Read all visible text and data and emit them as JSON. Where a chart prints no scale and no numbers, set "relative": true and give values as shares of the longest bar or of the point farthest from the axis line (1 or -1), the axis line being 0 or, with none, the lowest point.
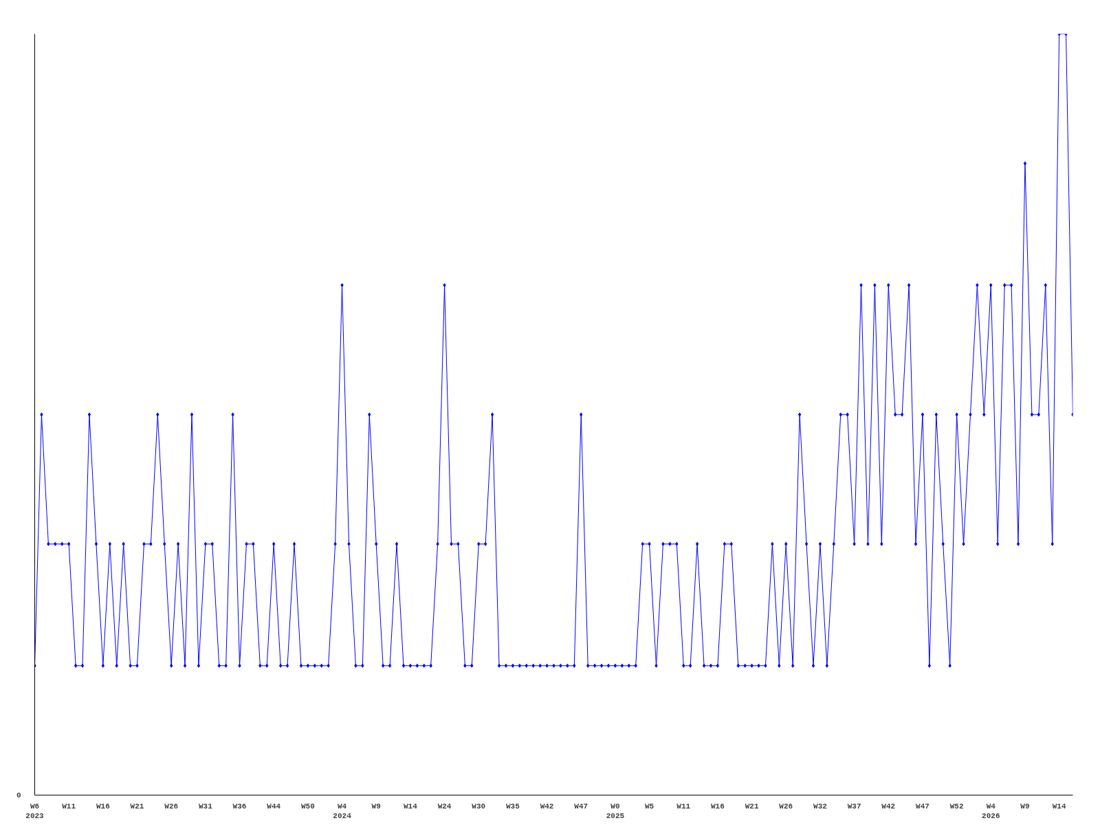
{
  "chart_data": {
    "type": "line",
    "relative": true,
    "color": "#0000ff",
    "marker": "diamond",
    "grid": false,
    "annotations": [
      "0"
    ],
    "categories": [
      "W6\n2023",
      null,
      null,
      null,
      null,
      "W11",
      null,
      null,
      null,
      null,
      "W16",
      null,
      null,
      null,
      null,
      "W21",
      null,
      null,
      null,
      null,
      "W26",
      null,
      null,
      null,
      null,
      "W31",
      null,
      null,
      null,
      null,
      "W36",
      null,
      null,
      null,
      null,
      "W44",
      null,
      null,
      null,
      null,
      "W50",
      null,
      null,
      null,
      null,
      "W4\n2024",
      null,
      null,
      null,
      null,
      "W9",
      null,
      null,
      null,
      null,
      "W14",
      null,
      null,
      null,
      null,
      "W24",
      null,
      null,
      null,
      null,
      "W30",
      null,
      null,
      null,
      null,
      "W35",
      null,
      null,
      null,
      null,
      "W42",
      null,
      null,
      null,
      null,
      "W47",
      null,
      null,
      null,
      null,
      "W0\n2025",
      null,
      null,
      null,
      null,
      "W5",
      null,
      null,
      null,
      null,
      "W11",
      null,
      null,
      null,
      null,
      "W16",
      null,
      null,
      null,
      null,
      "W21",
      null,
      null,
      null,
      null,
      "W26",
      null,
      null,
      null,
      null,
      "W32",
      null,
      null,
      null,
      null,
      "W37",
      null,
      null,
      null,
      null,
      "W42",
      null,
      null,
      null,
      null,
      "W47",
      null,
      null,
      null,
      null,
      "W52",
      null,
      null,
      null,
      null,
      "W4\n2026",
      null,
      null,
      null,
      null,
      "W9",
      null,
      null,
      null,
      null,
      "W14",
      null,
      null
    ],
    "values": [
      0.17,
      0.5,
      0.33,
      0.33,
      0.33,
      0.33,
      0.17,
      0.17,
      0.5,
      0.33,
      0.17,
      0.33,
      0.17,
      0.33,
      0.17,
      0.17,
      0.33,
      0.33,
      0.5,
      0.33,
      0.17,
      0.33,
      0.17,
      0.5,
      0.17,
      0.33,
      0.33,
      0.17,
      0.17,
      0.5,
      0.17,
      0.33,
      0.33,
      0.17,
      0.17,
      0.33,
      0.17,
      0.17,
      0.33,
      0.17,
      0.17,
      0.17,
      0.17,
      0.17,
      0.33,
      0.67,
      0.33,
      0.17,
      0.17,
      0.5,
      0.33,
      0.17,
      0.17,
      0.33,
      0.17,
      0.17,
      0.17,
      0.17,
      0.17,
      0.33,
      0.67,
      0.33,
      0.33,
      0.17,
      0.17,
      0.33,
      0.33,
      0.5,
      0.17,
      0.17,
      0.17,
      0.17,
      0.17,
      0.17,
      0.17,
      0.17,
      0.17,
      0.17,
      0.17,
      0.17,
      0.5,
      0.17,
      0.17,
      0.17,
      0.17,
      0.17,
      0.17,
      0.17,
      0.17,
      0.33,
      0.33,
      0.17,
      0.33,
      0.33,
      0.33,
      0.17,
      0.17,
      0.33,
      0.17,
      0.17,
      0.17,
      0.33,
      0.33,
      0.17,
      0.17,
      0.17,
      0.17,
      0.17,
      0.33,
      0.17,
      0.33,
      0.17,
      0.5,
      0.33,
      0.17,
      0.33,
      0.17,
      0.33,
      0.5,
      0.5,
      0.33,
      0.67,
      0.33,
      0.67,
      0.33,
      0.67,
      0.5,
      0.5,
      0.67,
      0.33,
      0.5,
      0.17,
      0.5,
      0.33,
      0.17,
      0.5,
      0.33,
      0.5,
      0.67,
      0.5,
      0.67,
      0.33,
      0.67,
      0.67,
      0.33,
      0.83,
      0.5,
      0.5,
      0.67,
      0.33,
      1,
      1,
      0.5
    ]
  }
}
